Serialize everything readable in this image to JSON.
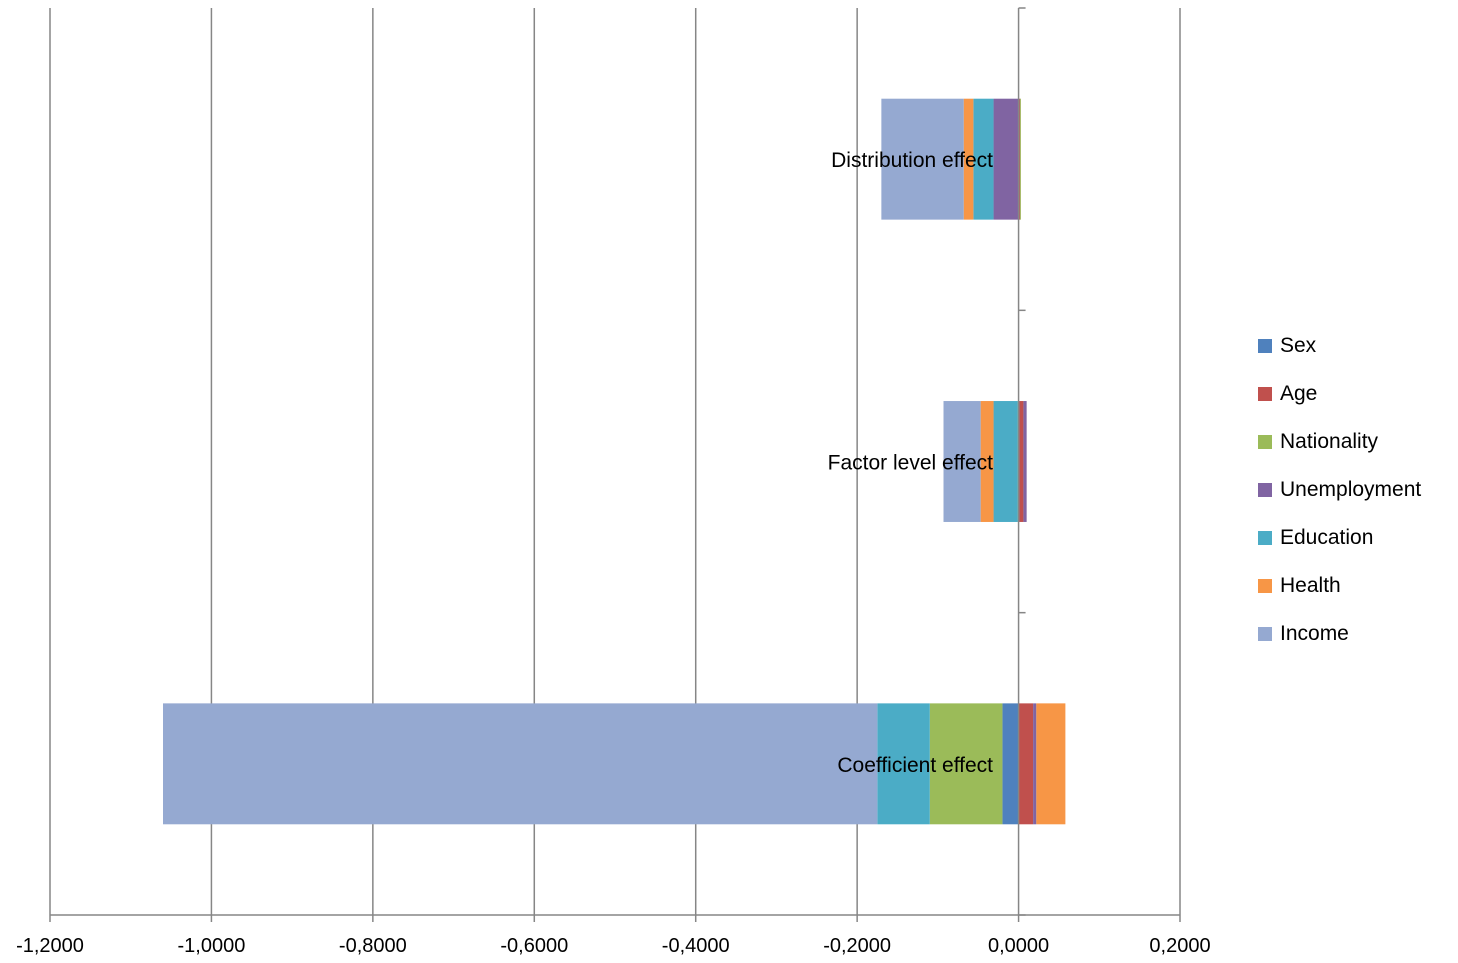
{
  "chart_data": {
    "type": "bar",
    "orientation": "horizontal",
    "stacked": true,
    "categories": [
      "Distribution effect",
      "Factor level effect",
      "Coefficient effect"
    ],
    "series": [
      {
        "name": "Sex",
        "color": "#4F81BD",
        "values": [
          0.001,
          0.001,
          -0.02
        ]
      },
      {
        "name": "Age",
        "color": "#C0504D",
        "values": [
          0.001,
          0.005,
          0.018
        ]
      },
      {
        "name": "Nationality",
        "color": "#9BBB59",
        "values": [
          0.001,
          -0.001,
          -0.09
        ]
      },
      {
        "name": "Unemployment",
        "color": "#8064A2",
        "values": [
          -0.031,
          0.004,
          0.004
        ]
      },
      {
        "name": "Education",
        "color": "#4BACC6",
        "values": [
          -0.025,
          -0.03,
          -0.065
        ]
      },
      {
        "name": "Health",
        "color": "#F79646",
        "values": [
          -0.012,
          -0.016,
          0.036
        ]
      },
      {
        "name": "Income",
        "color": "#95A9D1",
        "values": [
          -0.102,
          -0.046,
          -0.885
        ]
      }
    ],
    "xlim": [
      -1.2,
      0.2
    ],
    "x_ticks": [
      "-1,2000",
      "-1,0000",
      "-0,8000",
      "-0,6000",
      "-0,4000",
      "-0,2000",
      "0,0000",
      "0,2000"
    ],
    "x_tick_values": [
      -1.2,
      -1.0,
      -0.8,
      -0.6,
      -0.4,
      -0.2,
      0.0,
      0.2
    ],
    "grid": true,
    "legend_position": "right",
    "grid_color": "#868686",
    "axis_color": "#868686"
  }
}
